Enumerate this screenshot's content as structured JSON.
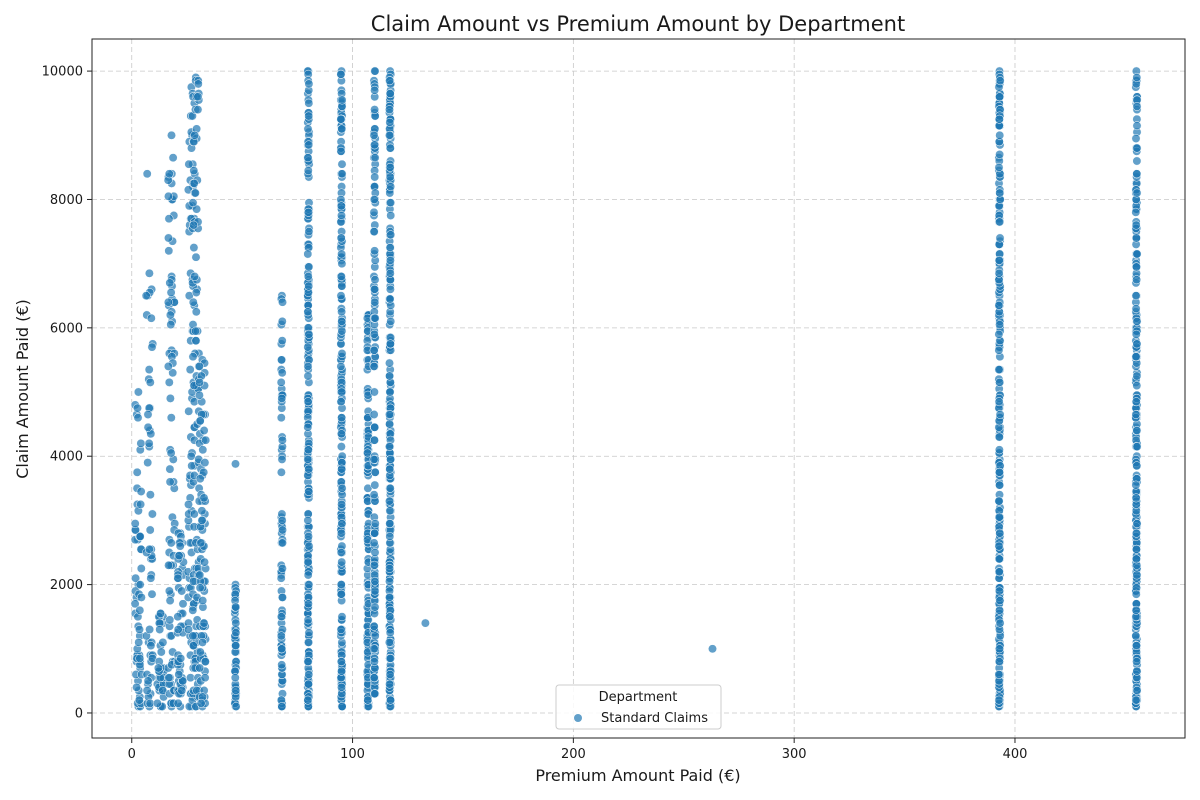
{
  "chart_data": {
    "type": "scatter",
    "title": "Claim Amount vs Premium Amount by Department",
    "xlabel": "Premium Amount Paid (€)",
    "ylabel": "Claim Amount Paid (€)",
    "xlim": [
      -18,
      477
    ],
    "ylim": [
      -390,
      10500
    ],
    "xticks": [
      "0",
      "100",
      "200",
      "300",
      "400"
    ],
    "yticks": [
      "0",
      "2000",
      "4000",
      "6000",
      "8000",
      "10000"
    ],
    "grid": true,
    "legend": {
      "title": "Department",
      "placement": "lower-center"
    },
    "point_color": "#1f77b4",
    "series": [
      {
        "name": "Standard Claims",
        "columns": [
          {
            "x": 3,
            "y_min": 100,
            "y_max": 5000,
            "count": 60
          },
          {
            "x": 8,
            "y_min": 100,
            "y_max": 6850,
            "count": 50
          },
          {
            "x": 13,
            "y_min": 100,
            "y_max": 1550,
            "count": 35
          },
          {
            "x": 18,
            "y_min": 100,
            "y_max": 9000,
            "count": 80
          },
          {
            "x": 22,
            "y_min": 100,
            "y_max": 2800,
            "count": 50
          },
          {
            "x": 27,
            "y_min": 100,
            "y_max": 9750,
            "count": 70
          },
          {
            "x": 29,
            "y_min": 100,
            "y_max": 9900,
            "count": 110
          },
          {
            "x": 32,
            "y_min": 100,
            "y_max": 5500,
            "count": 80
          },
          {
            "x": 47,
            "y_min": 100,
            "y_max": 2000,
            "count": 50
          },
          {
            "x": 68,
            "y_min": 100,
            "y_max": 6500,
            "count": 80
          },
          {
            "x": 80,
            "y_min": 100,
            "y_max": 10000,
            "count": 240
          },
          {
            "x": 95,
            "y_min": 100,
            "y_max": 10000,
            "count": 220
          },
          {
            "x": 107,
            "y_min": 100,
            "y_max": 6200,
            "count": 150
          },
          {
            "x": 110,
            "y_min": 300,
            "y_max": 10000,
            "count": 160
          },
          {
            "x": 117,
            "y_min": 100,
            "y_max": 10000,
            "count": 260
          },
          {
            "x": 393,
            "y_min": 100,
            "y_max": 10000,
            "count": 280
          },
          {
            "x": 455,
            "y_min": 100,
            "y_max": 10000,
            "count": 280
          }
        ],
        "points": [
          {
            "x": 7,
            "y": 8400
          },
          {
            "x": 17,
            "y": 8400
          },
          {
            "x": 47,
            "y": 3880
          },
          {
            "x": 68,
            "y": 100
          },
          {
            "x": 133,
            "y": 1400
          },
          {
            "x": 263,
            "y": 1000
          }
        ]
      }
    ]
  }
}
